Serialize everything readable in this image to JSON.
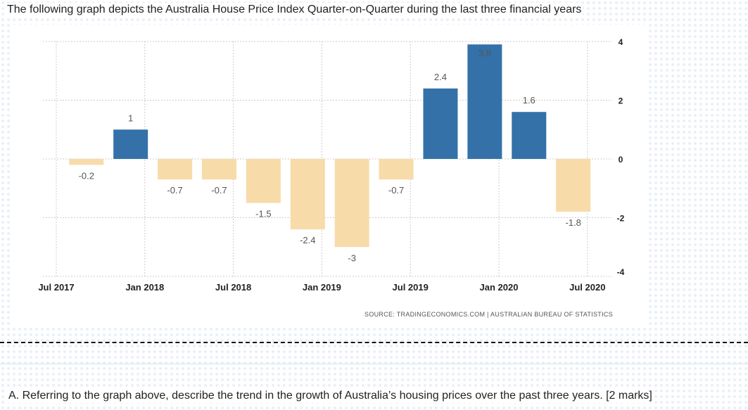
{
  "header": {
    "title": "The following graph depicts the Australia House Price Index Quarter-on-Quarter during the last three financial years"
  },
  "chart_data": {
    "type": "bar",
    "title": "",
    "xlabel": "",
    "ylabel": "",
    "categories": [
      "Sep 2017",
      "Dec 2017",
      "Mar 2018",
      "Jun 2018",
      "Sep 2018",
      "Dec 2018",
      "Mar 2019",
      "Jun 2019",
      "Sep 2019",
      "Dec 2019",
      "Mar 2020",
      "Jun 2020"
    ],
    "values": [
      -0.2,
      1,
      -0.7,
      -0.7,
      -1.5,
      -2.4,
      -3,
      -0.7,
      2.4,
      3.9,
      1.6,
      -1.8
    ],
    "value_labels": [
      "-0.2",
      "1",
      "-0.7",
      "-0.7",
      "-1.5",
      "-2.4",
      "-3",
      "-0.7",
      "2.4",
      "3.9",
      "1.6",
      "-1.8"
    ],
    "ylim": [
      -4,
      4
    ],
    "yticks": [
      "4",
      "2",
      "0",
      "-2",
      "-4"
    ],
    "xticks": [
      "Jul 2017",
      "Jan 2018",
      "Jul 2018",
      "Jan 2019",
      "Jul 2019",
      "Jan 2020",
      "Jul 2020"
    ],
    "y_axis_side": "right",
    "grid": true,
    "colors": {
      "positive": "#3471a8",
      "negative": "#f7dba8",
      "grid": "#cccccc",
      "label": "#555555"
    },
    "source": "SOURCE: TRADINGECONOMICS.COM  |  AUSTRALIAN BUREAU OF STATISTICS"
  },
  "question": {
    "text": "A. Referring to the graph above, describe the trend in the growth of Australia’s housing prices over the past three years. [2 marks]"
  }
}
